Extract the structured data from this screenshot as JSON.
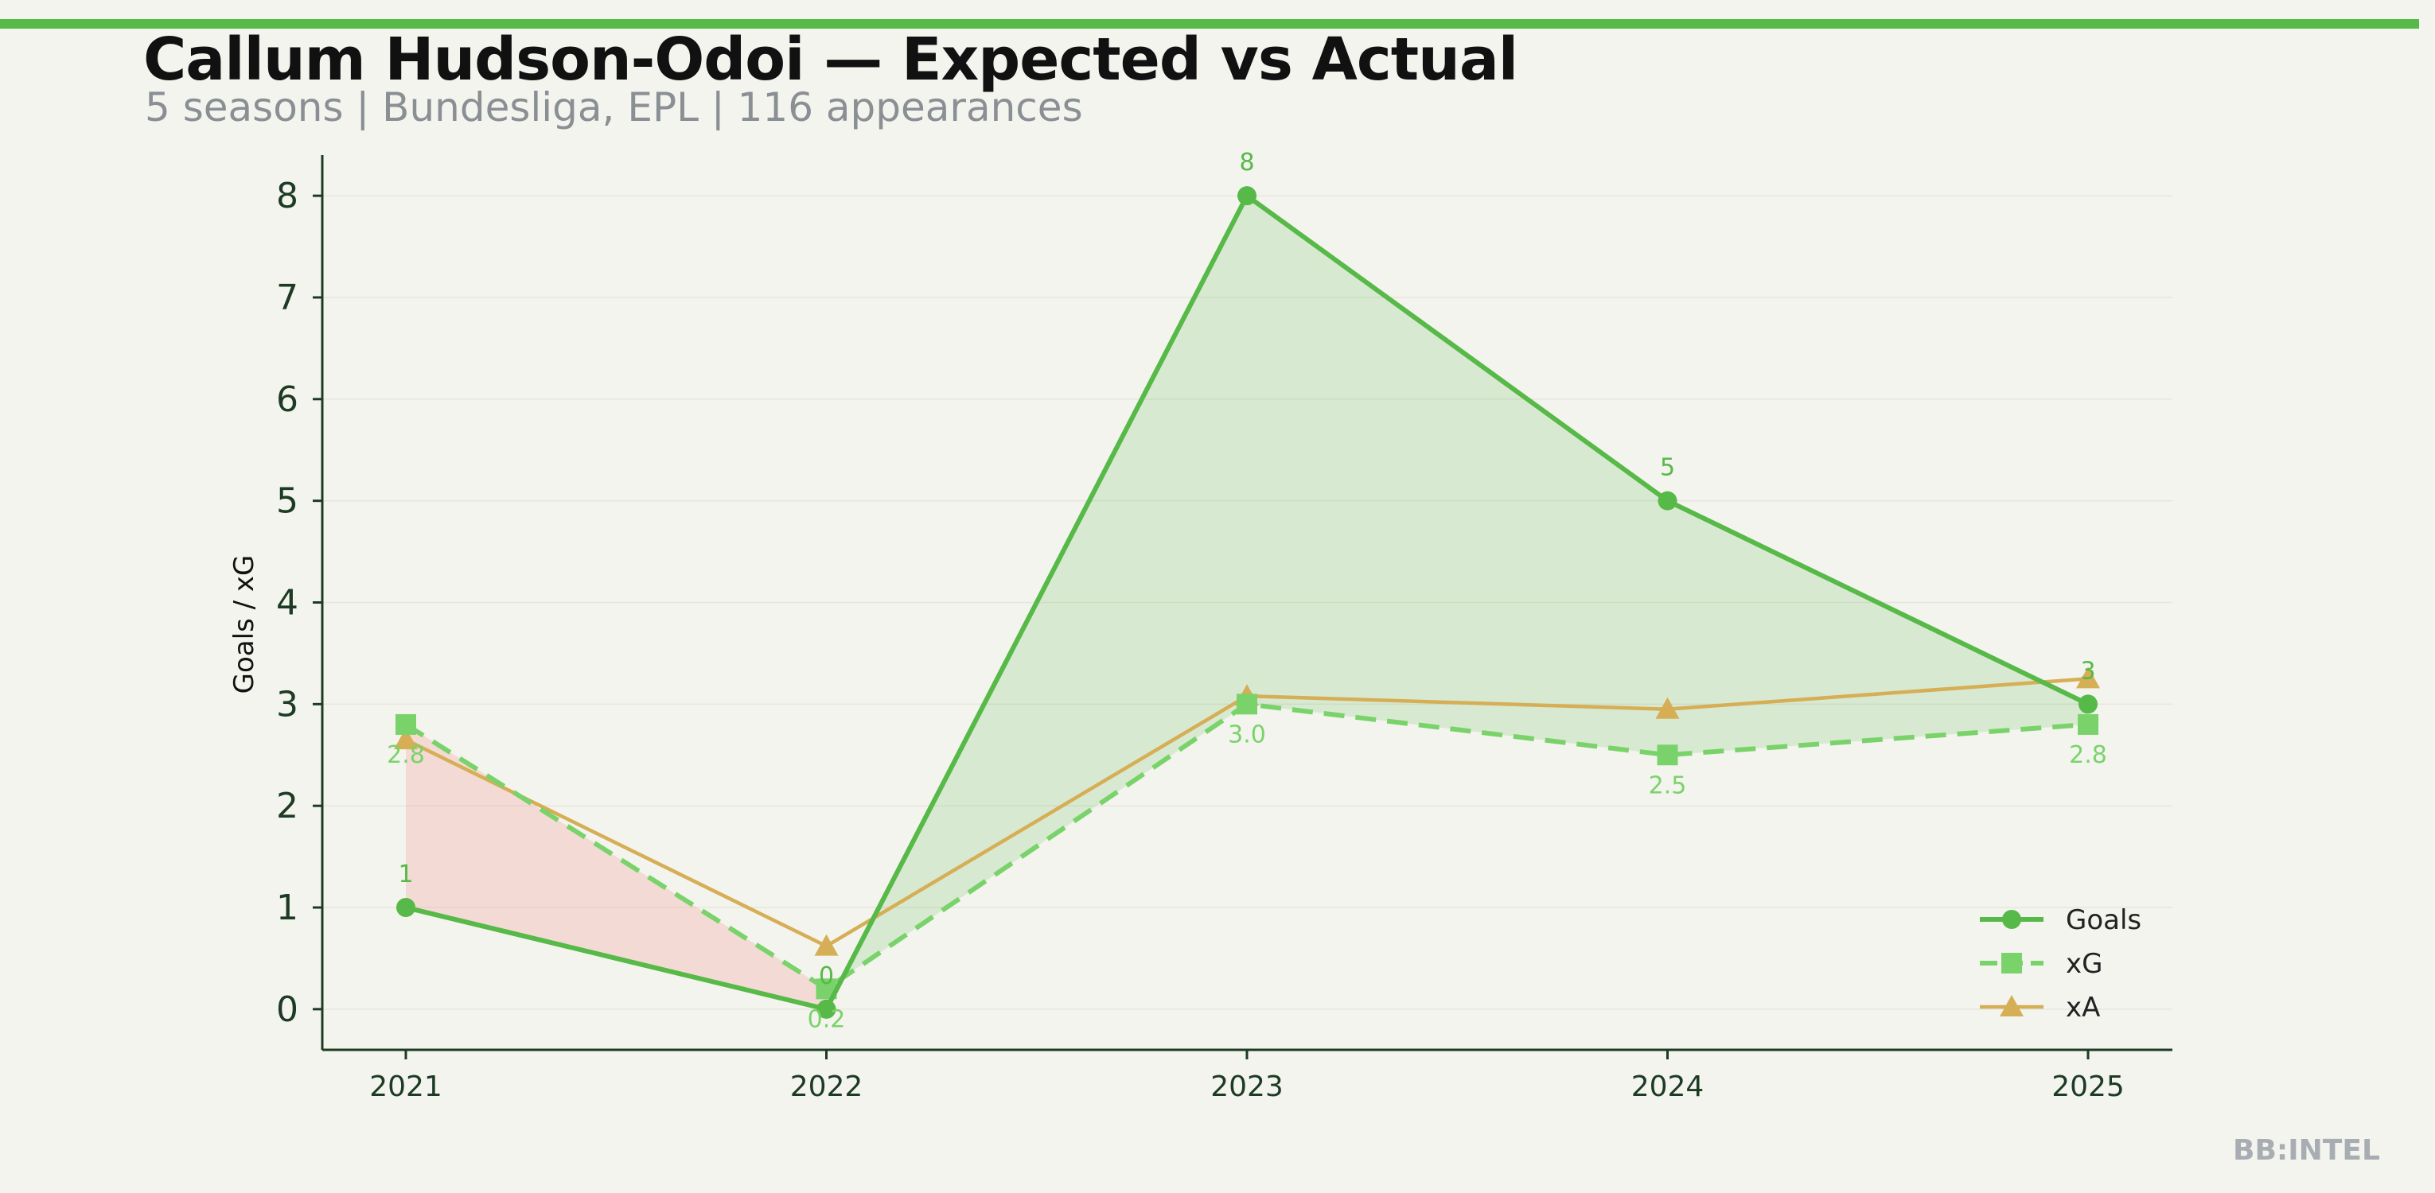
{
  "title": "Callum Hudson-Odoi — Expected vs Actual",
  "subtitle": "5 seasons | Bundesliga, EPL | 116 appearances",
  "watermark": "BB:INTEL",
  "colors": {
    "accent_bar": "#57b947",
    "goals": "#57b947",
    "xg": "#7ad36a",
    "xa": "#d6ae55",
    "overperform_fill": "#57b947",
    "underperform_fill": "#f2a9a3",
    "axis": "#1d3b22",
    "background": "#f4f4ef"
  },
  "chart_data": {
    "type": "line",
    "title": "Callum Hudson-Odoi — Expected vs Actual",
    "subtitle": "5 seasons | Bundesliga, EPL | 116 appearances",
    "xlabel": "",
    "ylabel": "Goals / xG",
    "categories": [
      "2021",
      "2022",
      "2023",
      "2024",
      "2025"
    ],
    "ylim": [
      -0.4,
      8.4
    ],
    "yticks": [
      0,
      1,
      2,
      3,
      4,
      5,
      6,
      7,
      8
    ],
    "grid": "horizontal, faint",
    "legend": "bottom-right",
    "series": [
      {
        "name": "Goals",
        "values": [
          1,
          0,
          8,
          5,
          3
        ],
        "style": "solid",
        "marker": "circle",
        "labels": [
          "1",
          "0",
          "8",
          "5",
          "3"
        ]
      },
      {
        "name": "xG",
        "values": [
          2.8,
          0.2,
          3.0,
          2.5,
          2.8
        ],
        "style": "dashed",
        "marker": "square",
        "labels": [
          "2.8",
          "0.2",
          "3.0",
          "2.5",
          "2.8"
        ]
      },
      {
        "name": "xA",
        "values": [
          2.65,
          0.62,
          3.08,
          2.95,
          3.25
        ],
        "style": "solid",
        "marker": "triangle"
      }
    ]
  }
}
